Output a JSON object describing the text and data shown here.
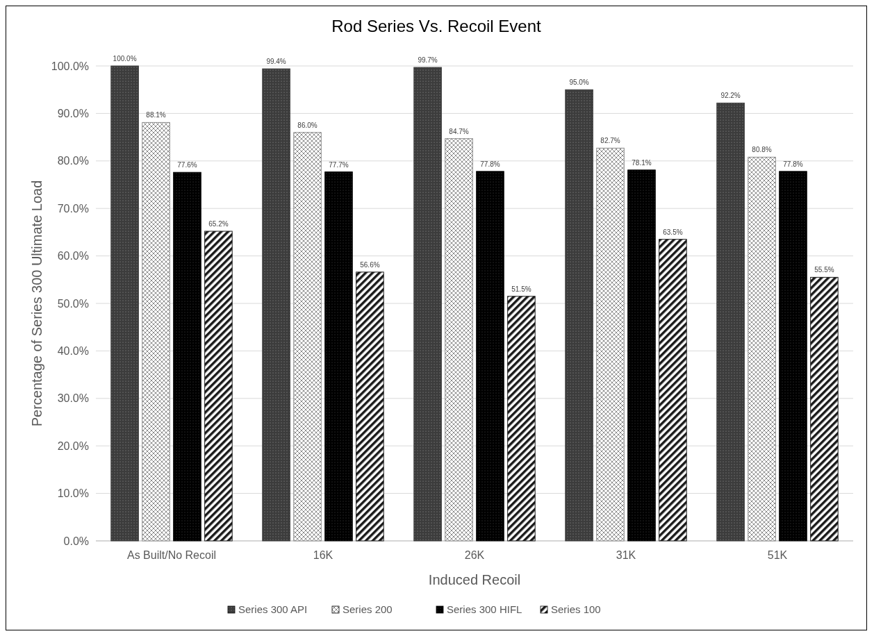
{
  "chart_data": {
    "type": "bar",
    "title": "Rod Series Vs. Recoil Event",
    "xlabel": "Induced Recoil",
    "ylabel": "Percentage of Series 300 Ultimate  Load",
    "categories": [
      "As Built/No Recoil",
      "16K",
      "26K",
      "31K",
      "51K"
    ],
    "series": [
      {
        "name": "Series 300 API",
        "color": "#3c3c3c",
        "values": [
          100.0,
          99.4,
          99.7,
          95.0,
          92.2
        ],
        "value_labels": [
          "100.0%",
          "99.4%",
          "99.7%",
          "95.0%",
          "92.2%"
        ]
      },
      {
        "name": "Series 200",
        "color": "#8c8c8c",
        "values": [
          88.1,
          86.0,
          84.7,
          82.7,
          80.8
        ],
        "value_labels": [
          "88.1%",
          "86.0%",
          "84.7%",
          "82.7%",
          "80.8%"
        ]
      },
      {
        "name": "Series 300 HIFL",
        "color": "#000000",
        "values": [
          77.6,
          77.7,
          77.8,
          78.1,
          77.8
        ],
        "value_labels": [
          "77.6%",
          "77.7%",
          "77.8%",
          "78.1%",
          "77.8%"
        ]
      },
      {
        "name": "Series 100",
        "color": "#1a1a1a",
        "values": [
          65.2,
          56.6,
          51.5,
          63.5,
          55.5
        ],
        "value_labels": [
          "65.2%",
          "56.6%",
          "51.5%",
          "63.5%",
          "55.5%"
        ]
      }
    ],
    "ylim": [
      0,
      100
    ],
    "yticks": [
      {
        "value": 0,
        "label": "0.0%"
      },
      {
        "value": 10,
        "label": "10.0%"
      },
      {
        "value": 20,
        "label": "20.0%"
      },
      {
        "value": 30,
        "label": "30.0%"
      },
      {
        "value": 40,
        "label": "40.0%"
      },
      {
        "value": 50,
        "label": "50.0%"
      },
      {
        "value": 60,
        "label": "60.0%"
      },
      {
        "value": 70,
        "label": "70.0%"
      },
      {
        "value": 80,
        "label": "80.0%"
      },
      {
        "value": 90,
        "label": "90.0%"
      },
      {
        "value": 100,
        "label": "100.0%"
      }
    ],
    "grid": "y",
    "legend": "bottom"
  }
}
